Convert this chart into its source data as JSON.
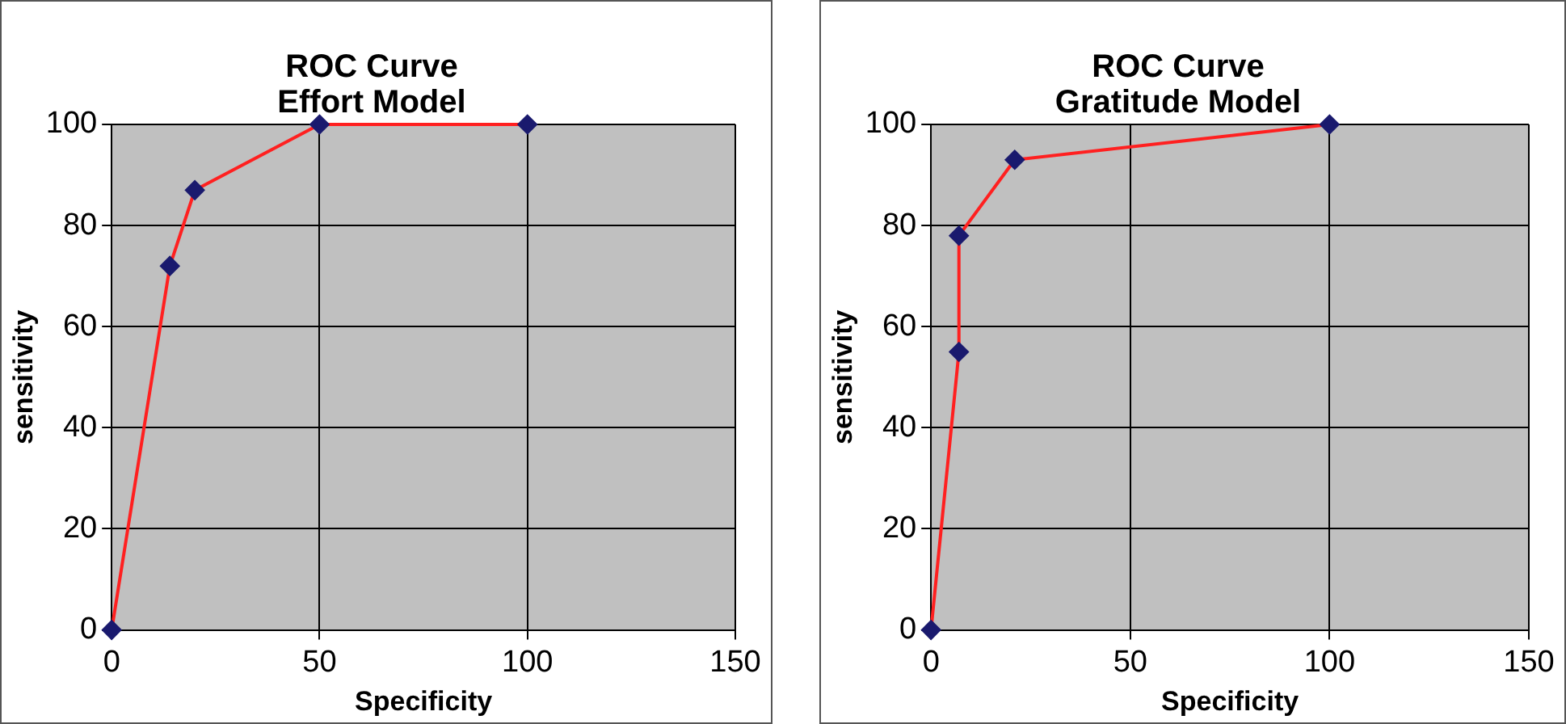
{
  "chart_data": [
    {
      "type": "line",
      "title": "ROC Curve\nEffort Model",
      "xlabel": "Specificity",
      "ylabel": "sensitivity",
      "x": [
        0,
        14,
        20,
        50,
        100
      ],
      "series": [
        {
          "color": "#ff2020",
          "values": [
            0,
            72,
            87,
            100,
            100
          ]
        }
      ],
      "xlim": [
        0,
        150
      ],
      "xticks": [
        0,
        50,
        100,
        150
      ],
      "ylim": [
        0,
        100
      ],
      "yticks": [
        0,
        20,
        40,
        60,
        80,
        100
      ],
      "grid": true,
      "legend": false,
      "marker": "diamond",
      "line_style": "solid"
    },
    {
      "type": "line",
      "title": "ROC Curve\nGratitude Model",
      "xlabel": "Specificity",
      "ylabel": "sensitivity",
      "x": [
        0,
        7,
        7,
        21,
        100
      ],
      "series": [
        {
          "color": "#ff2020",
          "values": [
            0,
            55,
            78,
            93,
            100
          ]
        }
      ],
      "xlim": [
        0,
        150
      ],
      "xticks": [
        0,
        50,
        100,
        150
      ],
      "ylim": [
        0,
        100
      ],
      "yticks": [
        0,
        20,
        40,
        60,
        80,
        100
      ],
      "grid": true,
      "legend": false,
      "marker": "diamond",
      "line_style": "solid"
    }
  ]
}
